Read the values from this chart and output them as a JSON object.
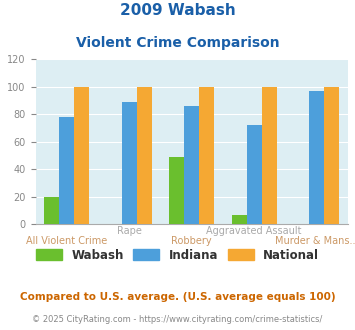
{
  "title_line1": "2009 Wabash",
  "title_line2": "Violent Crime Comparison",
  "category_labels_top": [
    "",
    "Rape",
    "",
    "Aggravated Assault",
    ""
  ],
  "category_labels_bottom": [
    "All Violent Crime",
    "",
    "Robbery",
    "",
    "Murder & Mans..."
  ],
  "wabash": [
    20,
    0,
    49,
    7,
    0
  ],
  "indiana": [
    78,
    89,
    86,
    72,
    97
  ],
  "national": [
    100,
    100,
    100,
    100,
    100
  ],
  "wabash_color": "#6abf2e",
  "indiana_color": "#4d9fdb",
  "national_color": "#f5a833",
  "ylim": [
    0,
    120
  ],
  "yticks": [
    0,
    20,
    40,
    60,
    80,
    100,
    120
  ],
  "plot_bg_color": "#ddeef3",
  "title_color": "#1a5fa8",
  "label_color_top": "#aaaaaa",
  "label_color_bottom": "#cc9966",
  "footer_text": "Compared to U.S. average. (U.S. average equals 100)",
  "footer_color": "#cc6600",
  "copyright_text": "© 2025 CityRating.com - https://www.cityrating.com/crime-statistics/",
  "copyright_color": "#888888",
  "legend_labels": [
    "Wabash",
    "Indiana",
    "National"
  ]
}
